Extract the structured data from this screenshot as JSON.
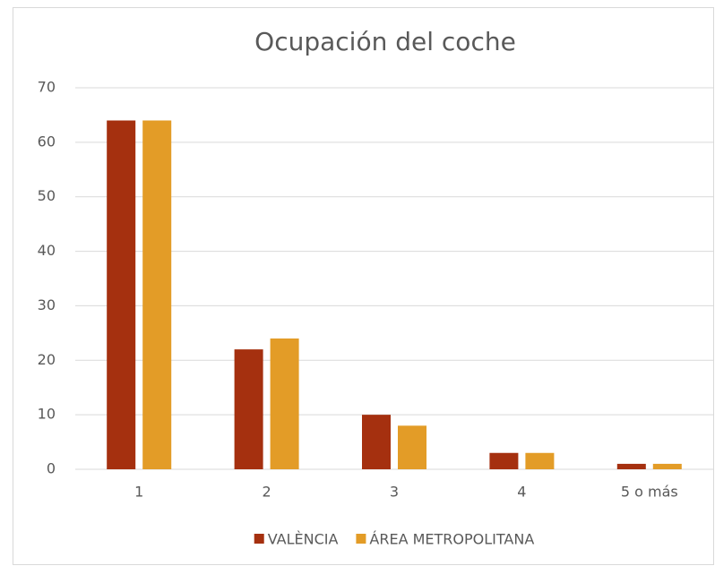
{
  "chart_data": {
    "type": "bar",
    "title": "Ocupación del coche",
    "categories": [
      "1",
      "2",
      "3",
      "4",
      "5 o más"
    ],
    "series": [
      {
        "name": "VALÈNCIA",
        "color": "#a5300f",
        "values": [
          64,
          22,
          10,
          3,
          1
        ]
      },
      {
        "name": "ÁREA METROPOLITANA",
        "color": "#e39c27",
        "values": [
          64,
          24,
          8,
          3,
          1
        ]
      }
    ],
    "ylim": [
      0,
      70
    ],
    "yticks": [
      0,
      10,
      20,
      30,
      40,
      50,
      60,
      70
    ],
    "grid": true,
    "legend": "bottom"
  }
}
